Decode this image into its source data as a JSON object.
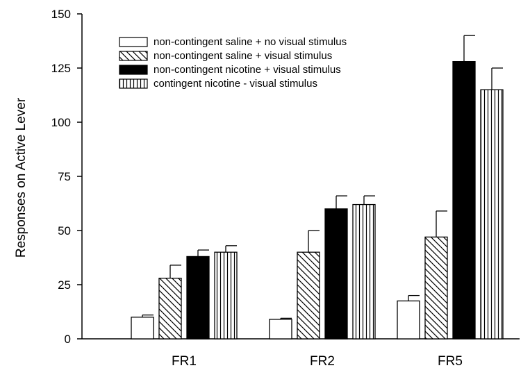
{
  "chart_data": {
    "type": "bar",
    "title": "",
    "xlabel": "",
    "ylabel": "Responses on Active Lever",
    "ylim": [
      0,
      150
    ],
    "yticks": [
      0,
      25,
      50,
      75,
      100,
      125,
      150
    ],
    "categories": [
      "FR1",
      "FR2",
      "FR5"
    ],
    "grid": false,
    "legend_position": "top-left",
    "series": [
      {
        "name": "non-contingent saline + no visual stimulus",
        "fill": "empty",
        "values": [
          10,
          9,
          17.5
        ],
        "errors": [
          1,
          0.5,
          2.5
        ]
      },
      {
        "name": "non-contingent saline + visual stimulus",
        "fill": "diagonal-hatch",
        "values": [
          28,
          40,
          47
        ],
        "errors": [
          6,
          10,
          12
        ]
      },
      {
        "name": "non-contingent nicotine + visual stimulus",
        "fill": "solid-black",
        "values": [
          38,
          60,
          128
        ],
        "errors": [
          3,
          6,
          12
        ]
      },
      {
        "name": "contingent nicotine - visual stimulus",
        "fill": "vertical-hatch",
        "values": [
          40,
          62,
          115
        ],
        "errors": [
          3,
          4,
          10
        ]
      }
    ]
  }
}
